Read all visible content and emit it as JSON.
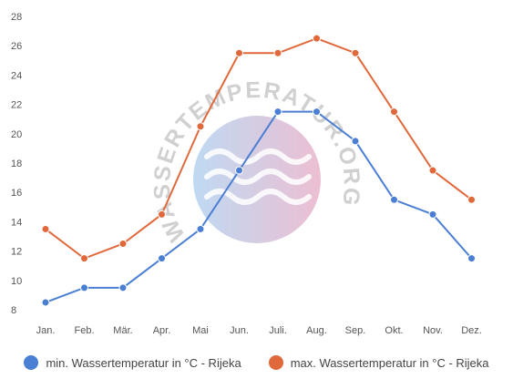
{
  "chart_data": {
    "type": "line",
    "categories": [
      "Jan.",
      "Feb.",
      "Mär.",
      "Apr.",
      "Mai",
      "Jun.",
      "Juli.",
      "Aug.",
      "Sep.",
      "Okt.",
      "Nov.",
      "Dez."
    ],
    "series": [
      {
        "name": "min. Wassertemperatur in °C - Rijeka",
        "color": "#4a7fd4",
        "values": [
          8.5,
          9.5,
          9.5,
          11.5,
          13.5,
          17.5,
          21.5,
          21.5,
          19.5,
          15.5,
          14.5,
          11.5
        ]
      },
      {
        "name": "max. Wassertemperatur in °C - Rijeka",
        "color": "#e0683a",
        "values": [
          13.5,
          11.5,
          12.5,
          14.5,
          20.5,
          25.5,
          25.5,
          26.5,
          25.5,
          21.5,
          17.5,
          15.5
        ]
      }
    ],
    "yticks": [
      8,
      10,
      12,
      14,
      16,
      18,
      20,
      22,
      24,
      26,
      28
    ],
    "ylim": [
      8,
      28
    ],
    "grid": false,
    "legend_position": "bottom"
  },
  "watermark": {
    "text": "WASSERTEMPERATUR.ORG"
  }
}
